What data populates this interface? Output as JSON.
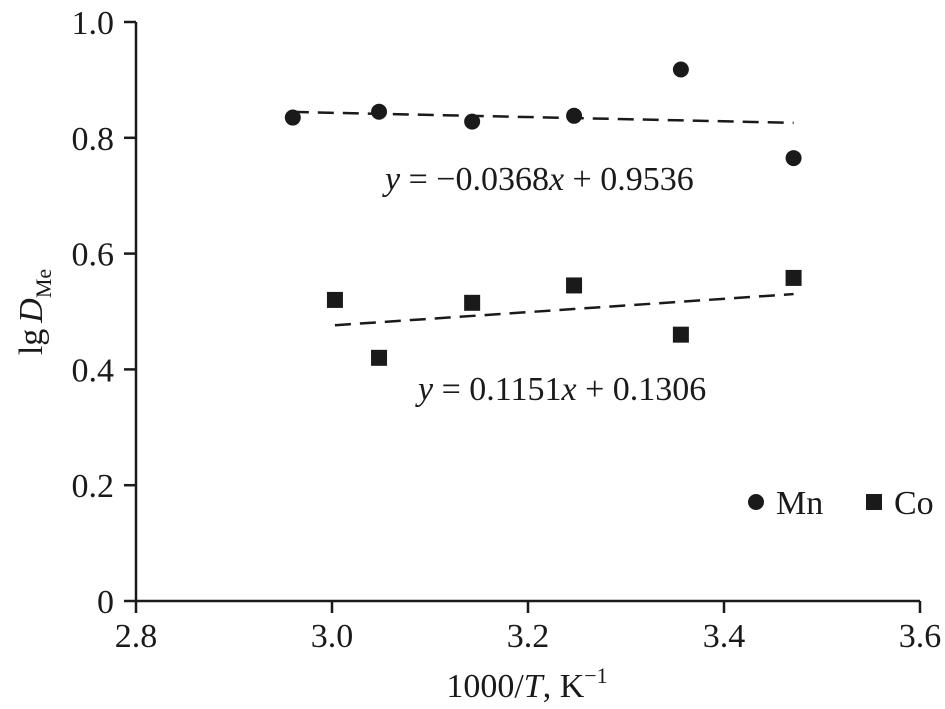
{
  "chart_data": {
    "type": "scatter",
    "title": "",
    "xlabel": {
      "main": "1000/",
      "italic": "T",
      "unit": ", K",
      "sup": "−1"
    },
    "ylabel": {
      "main": "lg",
      "italic": "D",
      "sub": "Me"
    },
    "xlim": [
      2.8,
      3.6
    ],
    "ylim": [
      0,
      1.0
    ],
    "x_ticks": [
      "2.8",
      "3.0",
      "3.2",
      "3.4",
      "3.6"
    ],
    "y_ticks": [
      "0",
      "0.2",
      "0.4",
      "0.6",
      "0.8",
      "1.0"
    ],
    "grid": false,
    "legend": {
      "placement": "bottom-right"
    },
    "series": [
      {
        "name": "Mn",
        "marker": "circle",
        "color": "#1a1a1a",
        "points": [
          {
            "x": 2.96,
            "y": 0.835
          },
          {
            "x": 3.048,
            "y": 0.845
          },
          {
            "x": 3.143,
            "y": 0.828
          },
          {
            "x": 3.247,
            "y": 0.838
          },
          {
            "x": 3.356,
            "y": 0.918
          },
          {
            "x": 3.471,
            "y": 0.765
          }
        ],
        "trendline": {
          "x_range": [
            2.96,
            3.471
          ],
          "equation": "y = −0.0368x + 0.9536"
        }
      },
      {
        "name": "Co",
        "marker": "square",
        "color": "#1a1a1a",
        "points": [
          {
            "x": 3.003,
            "y": 0.52
          },
          {
            "x": 3.048,
            "y": 0.42
          },
          {
            "x": 3.143,
            "y": 0.515
          },
          {
            "x": 3.247,
            "y": 0.545
          },
          {
            "x": 3.356,
            "y": 0.46
          },
          {
            "x": 3.471,
            "y": 0.558
          }
        ],
        "trendline": {
          "x_range": [
            3.003,
            3.471
          ],
          "equation": "y = 0.1151x + 0.1306"
        }
      }
    ]
  }
}
